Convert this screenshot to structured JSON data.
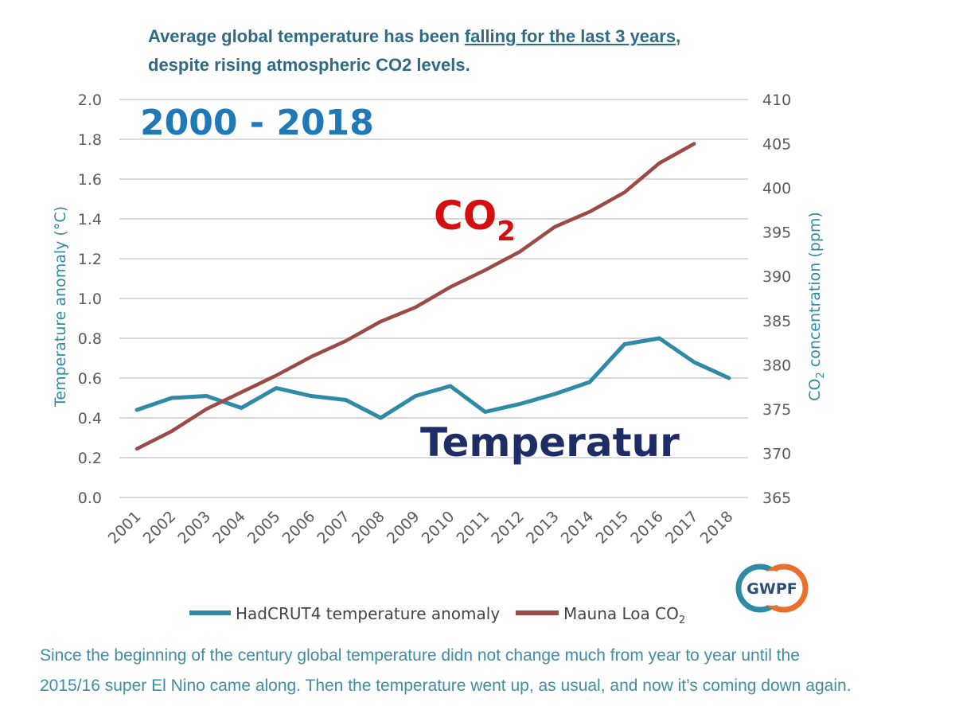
{
  "header": {
    "line1_prefix": "Average global temperature has been ",
    "line1_link": "falling for the last 3 years",
    "line1_suffix": ",",
    "line2": "despite rising atmospheric CO2 levels."
  },
  "caption": {
    "line1": "Since the beginning of the century global temperature didn not change much from year to year until the",
    "line2": "2015/16 super El Nino came along. Then the temperature went up, as usual, and now it’s coming down again."
  },
  "logo": {
    "text": "GWPF"
  },
  "chart_data": {
    "type": "line",
    "categories": [
      "2001",
      "2002",
      "2003",
      "2004",
      "2005",
      "2006",
      "2007",
      "2008",
      "2009",
      "2010",
      "2011",
      "2012",
      "2013",
      "2014",
      "2015",
      "2016",
      "2017",
      "2018"
    ],
    "ylabel_left": "Temperature anomaly (°C)",
    "ylabel_right_main": "CO",
    "ylabel_right_sub": "2",
    "ylabel_right_tail": " concentration (ppm)",
    "ylim_left": [
      0,
      2.0
    ],
    "ylim_right": [
      365,
      410
    ],
    "yticks_left": [
      "0.0",
      "0.2",
      "0.4",
      "0.6",
      "0.8",
      "1.0",
      "1.2",
      "1.4",
      "1.6",
      "1.8",
      "2.0"
    ],
    "yticks_right": [
      "365",
      "370",
      "375",
      "380",
      "385",
      "390",
      "395",
      "400",
      "405",
      "410"
    ],
    "grid": true,
    "legend_position": "bottom",
    "series": [
      {
        "name": "HadCRUT4 temperature anomaly",
        "axis": "left",
        "color": "#2f8aa6",
        "values": [
          0.44,
          0.5,
          0.51,
          0.45,
          0.55,
          0.51,
          0.49,
          0.4,
          0.51,
          0.56,
          0.43,
          0.47,
          0.52,
          0.58,
          0.77,
          0.8,
          0.68,
          0.6
        ]
      },
      {
        "name": "Mauna Loa CO",
        "name_sub": "2",
        "axis": "right",
        "color": "#9b4a44",
        "values": [
          370.5,
          372.5,
          375.0,
          376.9,
          378.8,
          380.9,
          382.7,
          384.9,
          386.5,
          388.8,
          390.7,
          392.8,
          395.6,
          397.3,
          399.5,
          402.8,
          405.0,
          null
        ]
      }
    ],
    "annotations": {
      "period": "2000 - 2018",
      "co2_main": "CO",
      "co2_sub": "2",
      "temperature": "Temperatur",
      "period_color": "#1f78b8",
      "co2_color": "#d40f0f",
      "temperature_color": "#1f2d66"
    }
  }
}
